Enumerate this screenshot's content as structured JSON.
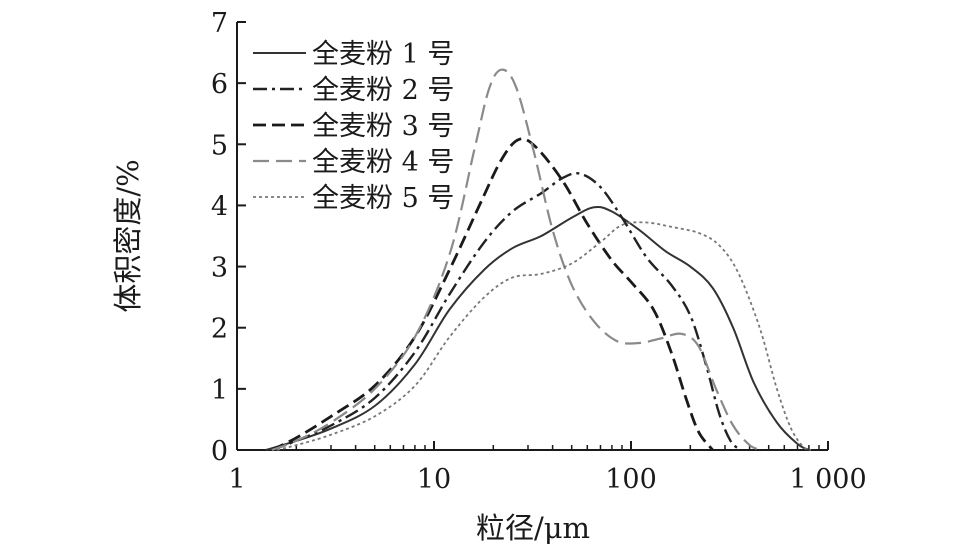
{
  "chart_data": {
    "type": "line",
    "x_scale": "log",
    "xlabel": "粒径/μm",
    "ylabel": "体积密度/%",
    "xlim": [
      1,
      1000
    ],
    "ylim": [
      0,
      7
    ],
    "x_ticks": [
      {
        "value": 1,
        "label": "1"
      },
      {
        "value": 10,
        "label": "10"
      },
      {
        "value": 100,
        "label": "100"
      },
      {
        "value": 1000,
        "label": "1 000"
      }
    ],
    "y_ticks": [
      {
        "value": 0,
        "label": "0"
      },
      {
        "value": 1,
        "label": "1"
      },
      {
        "value": 2,
        "label": "2"
      },
      {
        "value": 3,
        "label": "3"
      },
      {
        "value": 4,
        "label": "4"
      },
      {
        "value": 5,
        "label": "5"
      },
      {
        "value": 6,
        "label": "6"
      },
      {
        "value": 7,
        "label": "7"
      }
    ],
    "grid": false,
    "legend_position": "top-left",
    "series": [
      {
        "name": "全麦粉 1 号",
        "color": "#333333",
        "dash": "solid",
        "points": [
          [
            1.4,
            0
          ],
          [
            2,
            0.15
          ],
          [
            3,
            0.35
          ],
          [
            5,
            0.72
          ],
          [
            8,
            1.4
          ],
          [
            12,
            2.3
          ],
          [
            18,
            2.95
          ],
          [
            25,
            3.3
          ],
          [
            35,
            3.5
          ],
          [
            50,
            3.8
          ],
          [
            65,
            3.97
          ],
          [
            80,
            3.9
          ],
          [
            110,
            3.6
          ],
          [
            150,
            3.25
          ],
          [
            200,
            3.0
          ],
          [
            260,
            2.65
          ],
          [
            330,
            2.0
          ],
          [
            420,
            1.1
          ],
          [
            550,
            0.45
          ],
          [
            700,
            0.1
          ],
          [
            800,
            0
          ]
        ]
      },
      {
        "name": "全麦粉 2 号",
        "color": "#222222",
        "dash": "dashdot",
        "points": [
          [
            1.5,
            0
          ],
          [
            2,
            0.15
          ],
          [
            3,
            0.4
          ],
          [
            5,
            0.85
          ],
          [
            8,
            1.6
          ],
          [
            12,
            2.55
          ],
          [
            18,
            3.4
          ],
          [
            25,
            3.9
          ],
          [
            35,
            4.2
          ],
          [
            45,
            4.45
          ],
          [
            55,
            4.52
          ],
          [
            70,
            4.3
          ],
          [
            90,
            3.8
          ],
          [
            120,
            3.15
          ],
          [
            160,
            2.7
          ],
          [
            200,
            2.2
          ],
          [
            240,
            1.4
          ],
          [
            280,
            0.6
          ],
          [
            320,
            0.15
          ],
          [
            360,
            0
          ]
        ]
      },
      {
        "name": "全麦粉 3 号",
        "color": "#1a1a1a",
        "dash": "dashed",
        "points": [
          [
            1.5,
            0
          ],
          [
            2,
            0.2
          ],
          [
            3,
            0.55
          ],
          [
            5,
            1.05
          ],
          [
            8,
            1.85
          ],
          [
            12,
            2.95
          ],
          [
            17,
            4.0
          ],
          [
            22,
            4.75
          ],
          [
            27,
            5.08
          ],
          [
            33,
            4.95
          ],
          [
            45,
            4.4
          ],
          [
            60,
            3.7
          ],
          [
            80,
            3.1
          ],
          [
            100,
            2.75
          ],
          [
            130,
            2.3
          ],
          [
            160,
            1.6
          ],
          [
            190,
            0.85
          ],
          [
            220,
            0.3
          ],
          [
            260,
            0
          ]
        ]
      },
      {
        "name": "全麦粉 4 号",
        "color": "#8a8a8a",
        "dash": "longdash",
        "points": [
          [
            1.5,
            0
          ],
          [
            2,
            0.15
          ],
          [
            3,
            0.45
          ],
          [
            5,
            1.0
          ],
          [
            8,
            1.85
          ],
          [
            12,
            3.2
          ],
          [
            16,
            4.9
          ],
          [
            19,
            5.9
          ],
          [
            22,
            6.22
          ],
          [
            26,
            5.95
          ],
          [
            32,
            4.9
          ],
          [
            40,
            3.6
          ],
          [
            50,
            2.7
          ],
          [
            65,
            2.1
          ],
          [
            85,
            1.78
          ],
          [
            110,
            1.75
          ],
          [
            140,
            1.82
          ],
          [
            180,
            1.9
          ],
          [
            220,
            1.7
          ],
          [
            270,
            1.0
          ],
          [
            330,
            0.4
          ],
          [
            400,
            0.08
          ],
          [
            460,
            0
          ]
        ]
      },
      {
        "name": "全麦粉 5 号",
        "color": "#777777",
        "dash": "dotted",
        "points": [
          [
            1.6,
            0
          ],
          [
            2,
            0.08
          ],
          [
            3,
            0.25
          ],
          [
            5,
            0.55
          ],
          [
            8,
            1.05
          ],
          [
            12,
            1.85
          ],
          [
            18,
            2.5
          ],
          [
            25,
            2.82
          ],
          [
            35,
            2.88
          ],
          [
            50,
            3.05
          ],
          [
            70,
            3.4
          ],
          [
            90,
            3.68
          ],
          [
            120,
            3.72
          ],
          [
            160,
            3.65
          ],
          [
            220,
            3.55
          ],
          [
            280,
            3.35
          ],
          [
            350,
            2.9
          ],
          [
            450,
            2.0
          ],
          [
            550,
            1.0
          ],
          [
            650,
            0.35
          ],
          [
            750,
            0.05
          ],
          [
            820,
            0
          ]
        ]
      }
    ]
  }
}
